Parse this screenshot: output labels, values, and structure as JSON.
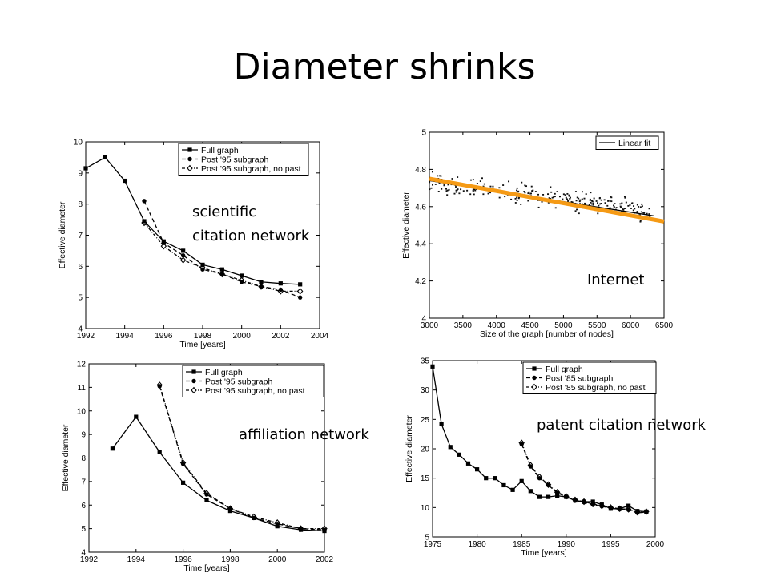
{
  "slide": {
    "title": "Diameter shrinks",
    "labels": {
      "scientific_line1": "scientific",
      "scientific_line2": "citation network",
      "internet": "Internet",
      "affiliation": "affiliation network",
      "patent": "patent citation network"
    }
  },
  "colors": {
    "fit": "#f59a15",
    "axis": "#000000",
    "line": "#000000",
    "scatter": "#111111"
  },
  "chart_data": [
    {
      "id": "scientific",
      "type": "line",
      "xlabel": "Time [years]",
      "ylabel": "Effective diameter",
      "xlim": [
        1992,
        2004
      ],
      "ylim": [
        4,
        10
      ],
      "xticks": [
        1992,
        1994,
        1996,
        1998,
        2000,
        2002,
        2004
      ],
      "yticks": [
        4,
        5,
        6,
        7,
        8,
        9,
        10
      ],
      "legend": "top-right",
      "series": [
        {
          "name": "Full graph",
          "style": "solid",
          "marker": "square",
          "x": [
            1992,
            1993,
            1994,
            1995,
            1996,
            1997,
            1998,
            1999,
            2000,
            2001,
            2002,
            2003
          ],
          "y": [
            9.15,
            9.5,
            8.75,
            7.45,
            6.8,
            6.5,
            6.05,
            5.9,
            5.7,
            5.5,
            5.45,
            5.42
          ]
        },
        {
          "name": "Post '95 subgraph",
          "style": "dashed",
          "marker": "circle",
          "x": [
            1995,
            1996,
            1997,
            1998,
            1999,
            2000,
            2001,
            2002,
            2003
          ],
          "y": [
            8.1,
            6.75,
            6.35,
            5.9,
            5.75,
            5.5,
            5.35,
            5.25,
            5.0
          ]
        },
        {
          "name": "Post '95 subgraph, no past",
          "style": "dashdot",
          "marker": "diamond",
          "x": [
            1995,
            1996,
            1997,
            1998,
            1999,
            2000,
            2001,
            2002,
            2003
          ],
          "y": [
            7.4,
            6.65,
            6.2,
            5.95,
            5.75,
            5.55,
            5.35,
            5.2,
            5.2
          ]
        }
      ]
    },
    {
      "id": "internet",
      "type": "scatter",
      "xlabel": "Size of the graph [number of nodes]",
      "ylabel": "Effective diameter",
      "xlim": [
        3000,
        6500
      ],
      "ylim": [
        4,
        5
      ],
      "xticks": [
        3000,
        3500,
        4000,
        4500,
        5000,
        5500,
        6000,
        6500
      ],
      "yticks": [
        4,
        4.2,
        4.4,
        4.6,
        4.8,
        5
      ],
      "legend": "top-right",
      "series": [
        {
          "name": "Linear fit",
          "style": "solid",
          "x": [
            3000,
            6350
          ],
          "y": [
            4.74,
            4.55
          ]
        }
      ],
      "highlight_line": {
        "x": [
          3000,
          6500
        ],
        "y": [
          4.75,
          4.52
        ]
      },
      "scatter_trend": {
        "x": [
          3000,
          6300
        ],
        "y": [
          4.74,
          4.57
        ],
        "spread": 0.035,
        "count": 260
      }
    },
    {
      "id": "affiliation",
      "type": "line",
      "xlabel": "Time [years]",
      "ylabel": "Effective diameter",
      "xlim": [
        1992,
        2002
      ],
      "ylim": [
        4,
        12
      ],
      "xticks": [
        1992,
        1994,
        1996,
        1998,
        2000,
        2002
      ],
      "yticks": [
        4,
        5,
        6,
        7,
        8,
        9,
        10,
        11,
        12
      ],
      "legend": "top-right",
      "series": [
        {
          "name": "Full graph",
          "style": "solid",
          "marker": "square",
          "x": [
            1993,
            1994,
            1995,
            1996,
            1997,
            1998,
            1999,
            2000,
            2001,
            2002
          ],
          "y": [
            8.4,
            9.75,
            8.25,
            6.95,
            6.2,
            5.75,
            5.45,
            5.1,
            4.95,
            4.9
          ]
        },
        {
          "name": "Post '95 subgraph",
          "style": "dashed",
          "marker": "circle",
          "x": [
            1995,
            1996,
            1997,
            1998,
            1999,
            2000,
            2001,
            2002
          ],
          "y": [
            11.05,
            7.75,
            6.45,
            5.85,
            5.45,
            5.2,
            5.0,
            4.95
          ]
        },
        {
          "name": "Post '95 subgraph, no past",
          "style": "dashdot",
          "marker": "diamond",
          "x": [
            1995,
            1996,
            1997,
            1998,
            1999,
            2000,
            2001,
            2002
          ],
          "y": [
            11.1,
            7.8,
            6.5,
            5.85,
            5.5,
            5.25,
            5.0,
            5.0
          ]
        }
      ]
    },
    {
      "id": "patent",
      "type": "line",
      "xlabel": "Time [years]",
      "ylabel": "Effective diameter",
      "xlim": [
        1975,
        2000
      ],
      "ylim": [
        5,
        35
      ],
      "xticks": [
        1975,
        1980,
        1985,
        1990,
        1995,
        2000
      ],
      "yticks": [
        5,
        10,
        15,
        20,
        25,
        30,
        35
      ],
      "legend": "top-right",
      "series": [
        {
          "name": "Full graph",
          "style": "solid",
          "marker": "square",
          "x": [
            1975,
            1976,
            1977,
            1978,
            1979,
            1980,
            1981,
            1982,
            1983,
            1984,
            1985,
            1986,
            1987,
            1988,
            1989,
            1990,
            1991,
            1992,
            1993,
            1994,
            1995,
            1996,
            1997,
            1998,
            1999
          ],
          "y": [
            34,
            24.2,
            20.3,
            19,
            17.5,
            16.5,
            15,
            15,
            13.8,
            13,
            14.5,
            12.8,
            11.8,
            11.8,
            12,
            11.8,
            11.2,
            11,
            11,
            10.5,
            9.8,
            9.8,
            10.3,
            9.4,
            9.3
          ]
        },
        {
          "name": "Post '85 subgraph",
          "style": "dashed",
          "marker": "circle",
          "x": [
            1985,
            1986,
            1987,
            1988,
            1989,
            1990,
            1991,
            1992,
            1993,
            1994,
            1995,
            1996,
            1997,
            1998,
            1999
          ],
          "y": [
            20.8,
            17,
            15,
            13.8,
            12.5,
            11.8,
            11.2,
            10.9,
            10.5,
            10.2,
            9.9,
            9.7,
            9.6,
            9.1,
            9.2
          ]
        },
        {
          "name": "Post '85 subgraph, no past",
          "style": "dashdot",
          "marker": "diamond",
          "x": [
            1985,
            1986,
            1987,
            1988,
            1989,
            1990,
            1991,
            1992,
            1993,
            1994,
            1995,
            1996,
            1997,
            1998,
            1999
          ],
          "y": [
            21,
            17.2,
            15.2,
            13.9,
            12.6,
            11.9,
            11.3,
            11,
            10.6,
            10.3,
            10,
            9.8,
            9.7,
            9.2,
            9.3
          ]
        }
      ]
    }
  ]
}
